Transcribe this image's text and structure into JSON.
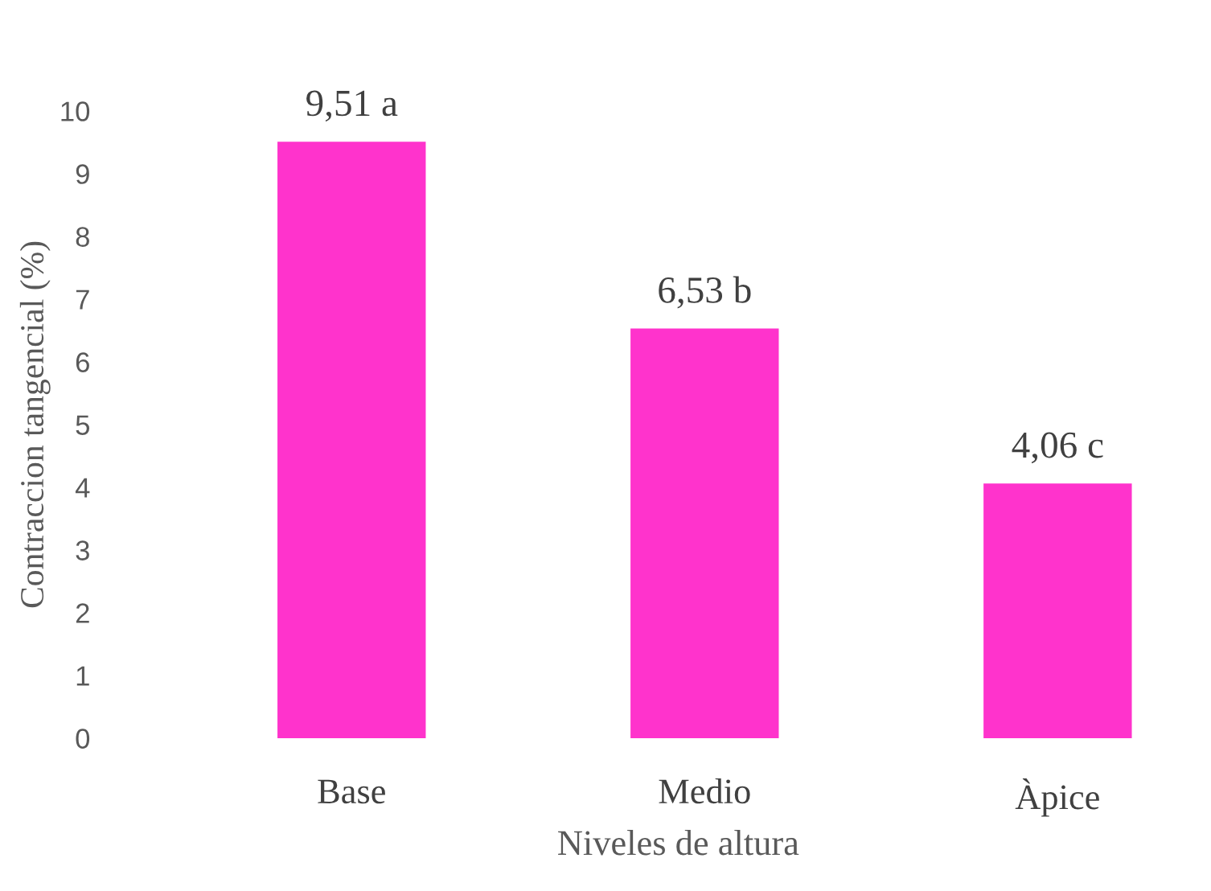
{
  "chart_data": {
    "type": "bar",
    "xlabel": "Niveles de altura",
    "ylabel": "Contraccion tangencial (%)",
    "categories": [
      "Base",
      "Medio",
      "Àpice"
    ],
    "values": [
      9.51,
      6.53,
      4.06
    ],
    "value_labels": [
      "9,51 a",
      "6,53 b",
      "4,06 c"
    ],
    "color": "#ff33cc",
    "ylim": [
      0,
      10
    ],
    "yticks": [
      0,
      1,
      2,
      3,
      4,
      5,
      6,
      7,
      8,
      9,
      10
    ]
  }
}
